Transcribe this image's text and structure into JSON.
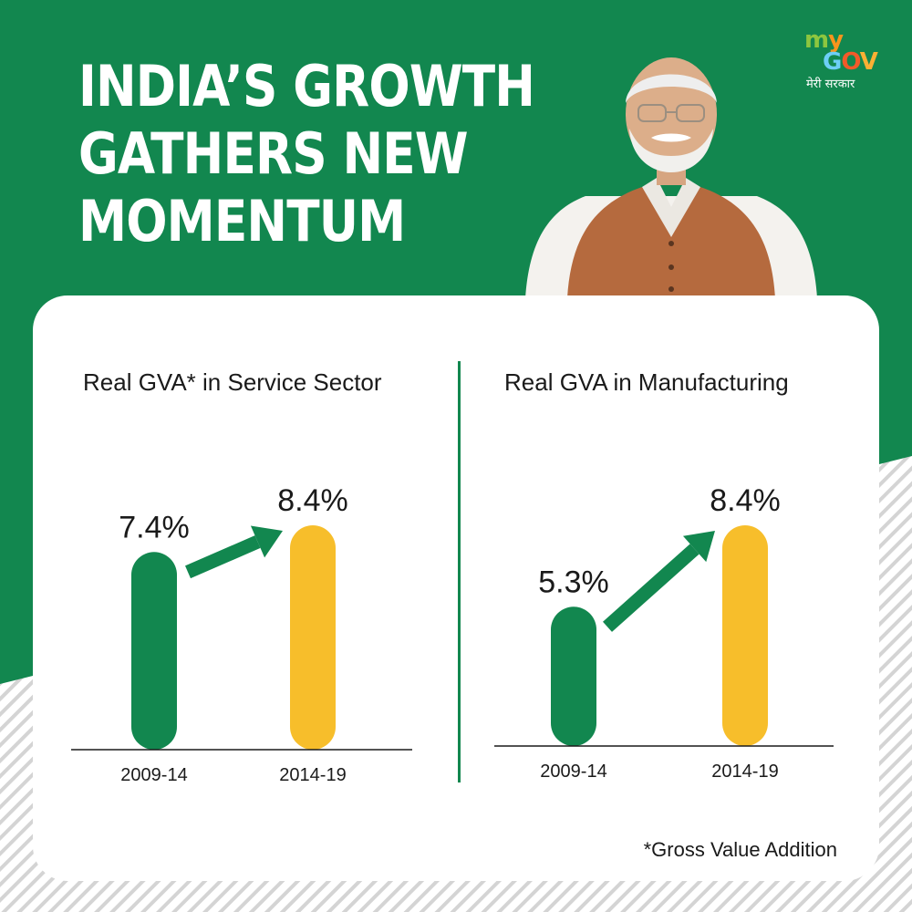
{
  "headline": {
    "line1": "INDIA’S GROWTH",
    "line2": "GATHERS NEW",
    "line3": "MOMENTUM"
  },
  "logo": {
    "my": "my",
    "gov": "GOV",
    "tagline": "मेरी सरकार"
  },
  "footnote": "*Gross Value Addition",
  "colors": {
    "brand_green": "#12874f",
    "bar_green": "#12874f",
    "bar_yellow": "#f7be2b",
    "text": "#1a1a1a",
    "stripe": "#d8d8d8"
  },
  "chart_data": [
    {
      "type": "bar",
      "title": "Real GVA* in Service Sector",
      "categories": [
        "2009-14",
        "2014-19"
      ],
      "values": [
        7.4,
        8.4
      ],
      "value_labels": [
        "7.4%",
        "8.4%"
      ],
      "unit": "%",
      "bar_colors": [
        "#12874f",
        "#f7be2b"
      ],
      "annotation": "upward-arrow-between-bars"
    },
    {
      "type": "bar",
      "title": "Real GVA in Manufacturing",
      "categories": [
        "2009-14",
        "2014-19"
      ],
      "values": [
        5.3,
        8.4
      ],
      "value_labels": [
        "5.3%",
        "8.4%"
      ],
      "unit": "%",
      "bar_colors": [
        "#12874f",
        "#f7be2b"
      ],
      "annotation": "upward-arrow-between-bars"
    }
  ]
}
